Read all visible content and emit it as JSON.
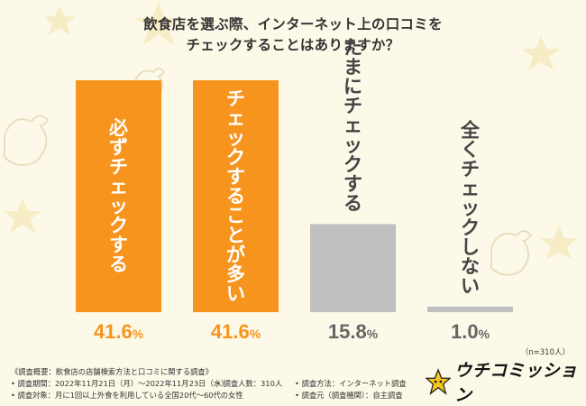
{
  "title_line1": "飲食店を選ぶ際、インターネット上の口コミを",
  "title_line2": "チェックすることはありますか？",
  "chart_data": {
    "type": "bar",
    "title": "飲食店を選ぶ際、インターネット上の口コミをチェックすることはありますか？",
    "categories": [
      "必ずチェックする",
      "チェックすることが多い",
      "たまにチェックする",
      "全くチェックしない"
    ],
    "values": [
      41.6,
      41.6,
      15.8,
      1.0
    ],
    "value_labels": [
      "41.6",
      "41.6",
      "15.8",
      "1.0"
    ],
    "unit": "%",
    "ylim": [
      0,
      41.6
    ],
    "colors": [
      "#f7941d",
      "#f7941d",
      "#c0c0c0",
      "#c0c0c0"
    ],
    "value_colors": [
      "#f7941d",
      "#f7941d",
      "#666666",
      "#666666"
    ],
    "xlabel": "",
    "ylabel": ""
  },
  "sample_size": "（n=310人）",
  "notes": {
    "heading": "《調査概要：飲食店の店舗検索方法と口コミに関する調査》",
    "period": "• 調査期間：2022年11月21日（月）～2022年11月23日（水）",
    "count": "• 調査人数：310人",
    "target": "• 調査対象：月に1回以上外食を利用している全国20代～60代の女性",
    "method": "• 調査方法：インターネット調査",
    "source": "• 調査元（調査機関）：自主調査"
  },
  "brand": {
    "name": "ウチコミッション"
  }
}
